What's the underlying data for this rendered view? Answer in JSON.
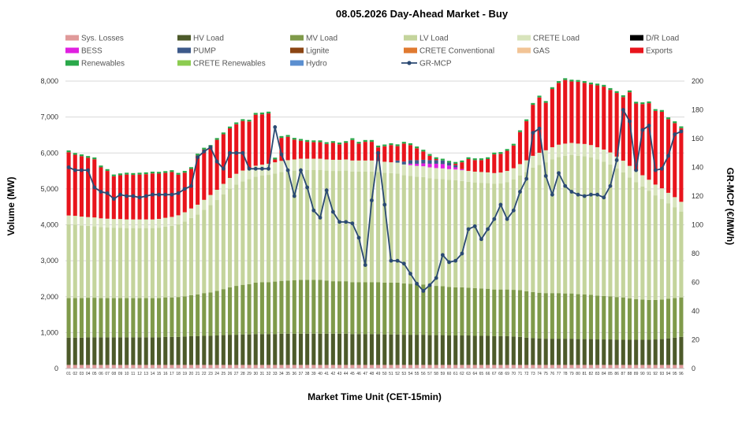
{
  "chart_data": {
    "type": "bar",
    "stacked": true,
    "title": "08.05.2026  Day-Ahead Market - Buy",
    "xlabel": "Market Time Unit (CET-15min)",
    "ylabel": "Volume (MW)",
    "y2label": "GR-MCP (€/MWh)",
    "ylim": [
      0,
      8000
    ],
    "y2lim": [
      0,
      200
    ],
    "yticks": [
      "0",
      "1,000",
      "2,000",
      "3,000",
      "4,000",
      "5,000",
      "6,000",
      "7,000",
      "8,000"
    ],
    "y2ticks": [
      "0",
      "20",
      "40",
      "60",
      "80",
      "100",
      "120",
      "140",
      "160",
      "180",
      "200"
    ],
    "grid": true,
    "legend_position": "top",
    "categories": [
      "01",
      "02",
      "03",
      "04",
      "05",
      "06",
      "07",
      "08",
      "09",
      "10",
      "11",
      "12",
      "13",
      "14",
      "15",
      "16",
      "17",
      "18",
      "19",
      "20",
      "21",
      "22",
      "23",
      "24",
      "25",
      "26",
      "27",
      "28",
      "29",
      "30",
      "31",
      "32",
      "33",
      "34",
      "35",
      "36",
      "37",
      "38",
      "39",
      "40",
      "41",
      "42",
      "43",
      "44",
      "45",
      "46",
      "47",
      "48",
      "49",
      "50",
      "51",
      "52",
      "53",
      "54",
      "55",
      "56",
      "57",
      "58",
      "59",
      "60",
      "61",
      "62",
      "63",
      "64",
      "65",
      "66",
      "67",
      "68",
      "69",
      "70",
      "71",
      "72",
      "73",
      "74",
      "75",
      "76",
      "77",
      "78",
      "79",
      "80",
      "81",
      "82",
      "83",
      "84",
      "85",
      "86",
      "87",
      "88",
      "89",
      "90",
      "91",
      "92",
      "93",
      "94",
      "95",
      "96"
    ],
    "legend": [
      {
        "name": "Sys. Losses",
        "color": "#e09a9a",
        "kind": "bar"
      },
      {
        "name": "HV Load",
        "color": "#4d5a2a",
        "kind": "bar"
      },
      {
        "name": "MV Load",
        "color": "#7f9a4a",
        "kind": "bar"
      },
      {
        "name": "LV Load",
        "color": "#c4d49c",
        "kind": "bar"
      },
      {
        "name": "CRETE Load",
        "color": "#d8e4bc",
        "kind": "bar"
      },
      {
        "name": "D/R Load",
        "color": "#000000",
        "kind": "bar"
      },
      {
        "name": "BESS",
        "color": "#e020e0",
        "kind": "bar"
      },
      {
        "name": "PUMP",
        "color": "#3d5a8a",
        "kind": "bar"
      },
      {
        "name": "Lignite",
        "color": "#8b4513",
        "kind": "bar"
      },
      {
        "name": "CRETE Conventional",
        "color": "#e07a30",
        "kind": "bar"
      },
      {
        "name": "GAS",
        "color": "#f2c496",
        "kind": "bar"
      },
      {
        "name": "Exports",
        "color": "#e8141c",
        "kind": "bar"
      },
      {
        "name": "Renewables",
        "color": "#2aa84a",
        "kind": "bar"
      },
      {
        "name": "CRETE Renewables",
        "color": "#8ccc50",
        "kind": "bar"
      },
      {
        "name": "Hydro",
        "color": "#5b8fd0",
        "kind": "bar"
      },
      {
        "name": "GR-MCP",
        "color": "#2b4a73",
        "kind": "line"
      }
    ],
    "series": [
      {
        "name": "Sys. Losses",
        "values": [
          100,
          100,
          100,
          100,
          100,
          100,
          100,
          100,
          100,
          100,
          100,
          100,
          100,
          100,
          100,
          100,
          100,
          100,
          100,
          100,
          100,
          100,
          100,
          100,
          100,
          100,
          100,
          100,
          100,
          100,
          100,
          100,
          100,
          100,
          100,
          100,
          100,
          100,
          100,
          100,
          100,
          100,
          100,
          100,
          100,
          100,
          100,
          100,
          100,
          100,
          100,
          100,
          100,
          100,
          100,
          100,
          100,
          100,
          100,
          100,
          100,
          100,
          100,
          100,
          100,
          100,
          100,
          100,
          100,
          100,
          100,
          100,
          100,
          100,
          100,
          100,
          100,
          100,
          100,
          100,
          100,
          100,
          100,
          100,
          100,
          100,
          100,
          100,
          100,
          100,
          100,
          100,
          100,
          100,
          100,
          100
        ]
      },
      {
        "name": "HV Load",
        "values": [
          760,
          760,
          760,
          770,
          770,
          770,
          770,
          770,
          770,
          770,
          770,
          770,
          770,
          770,
          770,
          780,
          780,
          780,
          790,
          800,
          800,
          810,
          810,
          820,
          830,
          840,
          840,
          850,
          850,
          860,
          860,
          860,
          860,
          870,
          870,
          870,
          870,
          870,
          870,
          870,
          870,
          870,
          870,
          870,
          860,
          860,
          860,
          860,
          860,
          850,
          850,
          850,
          840,
          840,
          840,
          840,
          830,
          830,
          830,
          820,
          820,
          820,
          820,
          810,
          810,
          810,
          800,
          800,
          800,
          790,
          780,
          760,
          750,
          740,
          730,
          730,
          730,
          730,
          730,
          720,
          720,
          720,
          710,
          710,
          710,
          700,
          700,
          700,
          700,
          700,
          700,
          710,
          720,
          740,
          760,
          780
        ]
      },
      {
        "name": "MV Load",
        "values": [
          1100,
          1100,
          1100,
          1100,
          1100,
          1090,
          1090,
          1090,
          1090,
          1090,
          1090,
          1090,
          1090,
          1090,
          1090,
          1100,
          1100,
          1110,
          1120,
          1140,
          1160,
          1190,
          1210,
          1240,
          1280,
          1320,
          1360,
          1380,
          1400,
          1430,
          1440,
          1440,
          1460,
          1470,
          1480,
          1490,
          1500,
          1500,
          1500,
          1500,
          1480,
          1460,
          1460,
          1460,
          1440,
          1440,
          1440,
          1440,
          1440,
          1440,
          1440,
          1440,
          1430,
          1420,
          1410,
          1400,
          1380,
          1370,
          1360,
          1350,
          1340,
          1340,
          1330,
          1330,
          1320,
          1310,
          1300,
          1300,
          1300,
          1300,
          1300,
          1290,
          1280,
          1270,
          1270,
          1270,
          1270,
          1260,
          1260,
          1250,
          1240,
          1230,
          1220,
          1210,
          1200,
          1190,
          1180,
          1150,
          1130,
          1120,
          1110,
          1100,
          1100,
          1100,
          1100,
          1100
        ]
      },
      {
        "name": "LV Load",
        "values": [
          2050,
          2040,
          2020,
          2000,
          1990,
          1980,
          1970,
          1960,
          1960,
          1950,
          1950,
          1950,
          1950,
          1950,
          1960,
          1970,
          1990,
          2020,
          2080,
          2150,
          2230,
          2320,
          2430,
          2530,
          2640,
          2750,
          2820,
          2880,
          2920,
          2950,
          2970,
          2990,
          3010,
          3030,
          3040,
          3050,
          3060,
          3060,
          3060,
          3060,
          3060,
          3070,
          3070,
          3080,
          3080,
          3080,
          3080,
          3080,
          3070,
          3060,
          3050,
          3040,
          3010,
          3000,
          2990,
          2990,
          2990,
          2980,
          2980,
          2980,
          2980,
          2960,
          2950,
          2940,
          2940,
          2940,
          2940,
          2950,
          2990,
          3070,
          3190,
          3320,
          3460,
          3560,
          3640,
          3720,
          3790,
          3830,
          3850,
          3850,
          3850,
          3830,
          3790,
          3740,
          3670,
          3580,
          3480,
          3370,
          3260,
          3150,
          3040,
          2910,
          2800,
          2660,
          2530,
          2390
        ]
      },
      {
        "name": "CRETE Load",
        "values": [
          250,
          250,
          250,
          245,
          245,
          240,
          240,
          240,
          240,
          240,
          240,
          240,
          240,
          240,
          245,
          245,
          250,
          255,
          260,
          265,
          270,
          275,
          280,
          285,
          290,
          295,
          300,
          300,
          305,
          305,
          305,
          310,
          310,
          310,
          310,
          310,
          310,
          310,
          310,
          310,
          310,
          310,
          310,
          310,
          310,
          310,
          310,
          310,
          305,
          305,
          300,
          300,
          300,
          300,
          300,
          300,
          300,
          300,
          300,
          300,
          300,
          300,
          300,
          300,
          300,
          300,
          300,
          305,
          310,
          315,
          320,
          325,
          330,
          335,
          335,
          340,
          340,
          340,
          340,
          340,
          340,
          340,
          340,
          335,
          335,
          330,
          325,
          320,
          315,
          310,
          305,
          300,
          295,
          290,
          280,
          270
        ]
      },
      {
        "name": "BESS",
        "values": [
          0,
          0,
          0,
          0,
          0,
          0,
          0,
          0,
          0,
          0,
          0,
          0,
          0,
          0,
          0,
          0,
          0,
          0,
          0,
          0,
          0,
          0,
          0,
          0,
          0,
          0,
          0,
          0,
          0,
          0,
          0,
          0,
          0,
          0,
          0,
          0,
          0,
          0,
          0,
          0,
          0,
          0,
          0,
          0,
          0,
          0,
          0,
          0,
          0,
          0,
          0,
          0,
          0,
          40,
          60,
          80,
          100,
          120,
          120,
          100,
          60,
          30,
          0,
          0,
          0,
          0,
          0,
          0,
          0,
          0,
          0,
          0,
          0,
          0,
          0,
          0,
          0,
          0,
          0,
          0,
          0,
          0,
          0,
          0,
          0,
          0,
          0,
          0,
          0,
          0,
          0,
          0,
          0,
          0,
          0,
          0
        ]
      },
      {
        "name": "PUMP",
        "values": [
          0,
          0,
          0,
          0,
          0,
          0,
          0,
          0,
          0,
          0,
          0,
          0,
          0,
          0,
          0,
          0,
          0,
          0,
          0,
          0,
          0,
          0,
          0,
          0,
          0,
          0,
          0,
          0,
          0,
          0,
          0,
          0,
          0,
          0,
          0,
          0,
          0,
          0,
          0,
          0,
          0,
          0,
          0,
          0,
          0,
          0,
          0,
          0,
          0,
          0,
          0,
          60,
          80,
          100,
          100,
          100,
          100,
          100,
          100,
          80,
          60,
          0,
          0,
          0,
          0,
          0,
          0,
          0,
          0,
          0,
          0,
          0,
          0,
          0,
          0,
          0,
          0,
          0,
          0,
          0,
          0,
          0,
          0,
          0,
          0,
          0,
          0,
          0,
          0,
          0,
          0,
          0,
          0,
          0,
          0,
          0
        ]
      },
      {
        "name": "Exports",
        "values": [
          1760,
          1700,
          1680,
          1650,
          1620,
          1420,
          1330,
          1190,
          1220,
          1250,
          1240,
          1250,
          1260,
          1280,
          1260,
          1250,
          1250,
          1130,
          1100,
          1100,
          1370,
          1400,
          1340,
          1390,
          1380,
          1380,
          1380,
          1380,
          1300,
          1420,
          1400,
          1400,
          80,
          640,
          650,
          550,
          500,
          470,
          460,
          460,
          430,
          470,
          430,
          460,
          570,
          470,
          520,
          520,
          380,
          430,
          480,
          400,
          500,
          420,
          330,
          230,
          120,
          30,
          0,
          0,
          40,
          190,
          330,
          320,
          330,
          370,
          520,
          520,
          560,
          630,
          890,
          1090,
          1420,
          1540,
          1320,
          1620,
          1720,
          1770,
          1710,
          1720,
          1700,
          1690,
          1720,
          1750,
          1740,
          1770,
          1770,
          2050,
          1870,
          1980,
          2130,
          2050,
          2130,
          2050,
          2060,
          2050
        ]
      },
      {
        "name": "Renewables",
        "values": [
          50,
          50,
          50,
          50,
          50,
          50,
          50,
          50,
          50,
          50,
          50,
          50,
          50,
          50,
          50,
          50,
          50,
          50,
          50,
          50,
          50,
          50,
          50,
          50,
          50,
          50,
          50,
          50,
          50,
          50,
          50,
          50,
          50,
          50,
          50,
          50,
          50,
          50,
          50,
          50,
          50,
          50,
          50,
          50,
          50,
          50,
          50,
          50,
          50,
          50,
          50,
          50,
          50,
          50,
          50,
          50,
          50,
          50,
          50,
          50,
          50,
          50,
          50,
          50,
          50,
          50,
          50,
          50,
          50,
          50,
          50,
          50,
          50,
          50,
          50,
          50,
          50,
          50,
          50,
          50,
          50,
          50,
          50,
          50,
          50,
          50,
          50,
          50,
          50,
          50,
          50,
          50,
          50,
          50,
          50,
          50
        ]
      },
      {
        "name": "GR-MCP",
        "values": [
          140,
          138,
          138,
          138,
          126,
          123,
          122,
          118,
          121,
          120,
          120,
          119,
          120,
          121,
          121,
          121,
          121,
          122,
          125,
          127,
          147,
          151,
          154,
          144,
          139,
          150,
          150,
          150,
          139,
          139,
          139,
          139,
          168,
          149,
          138,
          120,
          138,
          126,
          110,
          105,
          124,
          109,
          102,
          102,
          101,
          91,
          72,
          117,
          150,
          114,
          75,
          75,
          73,
          66,
          59,
          54,
          58,
          63,
          79,
          74,
          75,
          80,
          97,
          99,
          90,
          97,
          104,
          114,
          104,
          110,
          123,
          132,
          164,
          167,
          134,
          121,
          136,
          127,
          123,
          121,
          120,
          121,
          121,
          119,
          127,
          145,
          180,
          172,
          138,
          166,
          169,
          138,
          139,
          148,
          163,
          165
        ]
      }
    ]
  }
}
